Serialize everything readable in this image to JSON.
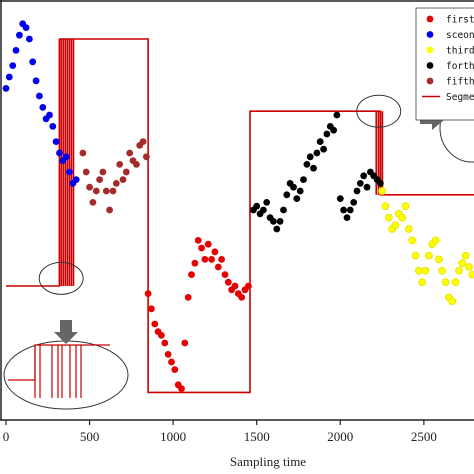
{
  "chart_data": {
    "type": "scatter",
    "xlabel": "Sampling time",
    "ylabel": "",
    "title": "",
    "xlim": [
      0,
      2800
    ],
    "ylim": [
      0,
      100
    ],
    "xticks": [
      0,
      500,
      1000,
      1500,
      2000,
      2500
    ],
    "xtick_labels": [
      "0",
      "500",
      "1000",
      "1500",
      "2000",
      "2500"
    ],
    "grid": false,
    "legend_position": "top-right",
    "series": [
      {
        "name": "first",
        "color": "#e60000",
        "x": [
          850,
          870,
          890,
          910,
          930,
          950,
          970,
          990,
          1010,
          1030,
          1050,
          1070,
          1090,
          1110,
          1130,
          1150,
          1170,
          1190,
          1210,
          1230,
          1250,
          1270,
          1290,
          1310,
          1330,
          1350,
          1370,
          1390,
          1410,
          1430,
          1450
        ],
        "y": [
          28,
          24,
          20,
          18,
          17,
          15,
          12,
          10,
          8,
          4,
          3,
          15,
          27,
          33,
          36,
          42,
          40,
          37,
          41,
          37,
          39,
          35,
          37,
          33,
          31,
          29,
          30,
          28,
          27,
          29,
          30
        ]
      },
      {
        "name": "sceond",
        "color": "#0000ee",
        "x": [
          0,
          20,
          40,
          60,
          80,
          100,
          120,
          140,
          160,
          180,
          200,
          220,
          240,
          260,
          280,
          300,
          320,
          340,
          360,
          380,
          400,
          420
        ],
        "y": [
          82,
          85,
          88,
          92,
          96,
          99,
          98,
          95,
          89,
          84,
          80,
          77,
          74,
          75,
          72,
          68,
          65,
          63,
          64,
          60,
          57,
          58
        ]
      },
      {
        "name": "third",
        "color": "#ffff00",
        "x": [
          2250,
          2270,
          2290,
          2310,
          2330,
          2350,
          2370,
          2390,
          2410,
          2430,
          2450,
          2470,
          2490,
          2510,
          2530,
          2550,
          2570,
          2590,
          2610,
          2630,
          2650,
          2670,
          2690,
          2710,
          2730,
          2750,
          2770,
          2790
        ],
        "y": [
          55,
          51,
          48,
          45,
          46,
          49,
          48,
          51,
          45,
          42,
          38,
          34,
          31,
          34,
          38,
          41,
          42,
          37,
          34,
          31,
          27,
          26,
          31,
          34,
          36,
          38,
          35,
          33
        ]
      },
      {
        "name": "forth",
        "color": "#000000",
        "x": [
          1480,
          1500,
          1520,
          1540,
          1560,
          1580,
          1600,
          1620,
          1640,
          1660,
          1680,
          1700,
          1720,
          1740,
          1760,
          1780,
          1800,
          1820,
          1840,
          1860,
          1880,
          1900,
          1920,
          1940,
          1960,
          1980,
          2000,
          2020,
          2040,
          2060,
          2080,
          2100,
          2120,
          2140,
          2160,
          2180,
          2200,
          2220,
          2240
        ],
        "y": [
          50,
          51,
          49,
          50,
          52,
          48,
          47,
          45,
          47,
          50,
          54,
          57,
          56,
          53,
          55,
          58,
          62,
          64,
          61,
          65,
          68,
          66,
          70,
          72,
          71,
          75,
          53,
          50,
          48,
          50,
          52,
          55,
          57,
          59,
          56,
          60,
          59,
          58,
          57
        ]
      },
      {
        "name": "fifth",
        "color": "#a52a2a",
        "x": [
          460,
          480,
          500,
          520,
          540,
          560,
          580,
          600,
          620,
          640,
          660,
          680,
          700,
          720,
          740,
          760,
          780,
          800,
          820,
          840
        ],
        "y": [
          65,
          60,
          56,
          52,
          55,
          58,
          60,
          55,
          50,
          55,
          57,
          62,
          58,
          60,
          65,
          63,
          62,
          67,
          68,
          64
        ]
      },
      {
        "name": "Segmentation",
        "color": "#cc0000"
      }
    ],
    "segmentation_line": {
      "x": [
        0,
        320,
        320,
        850,
        850,
        1460,
        1460,
        2240,
        2240,
        2800
      ],
      "y": [
        30,
        30,
        95,
        95,
        2,
        2,
        76,
        76,
        54,
        54
      ]
    },
    "segmentation_spikes_x": [
      320,
      332,
      344,
      356,
      368,
      380,
      392,
      404,
      2215,
      2228,
      2240,
      2252
    ],
    "segmentation_spike_range": [
      [
        30,
        95
      ],
      [
        30,
        95
      ],
      [
        30,
        95
      ],
      [
        30,
        95
      ],
      [
        30,
        95
      ],
      [
        30,
        95
      ],
      [
        30,
        95
      ],
      [
        30,
        95
      ],
      [
        76,
        54
      ],
      [
        76,
        54
      ],
      [
        76,
        54
      ],
      [
        76,
        54
      ]
    ],
    "annotations": [
      {
        "type": "ellipse",
        "name": "zoom-region-left",
        "cx": 330,
        "cy": 32
      },
      {
        "type": "ellipse",
        "name": "zoom-region-right",
        "cx": 2230,
        "cy": 76
      }
    ]
  }
}
